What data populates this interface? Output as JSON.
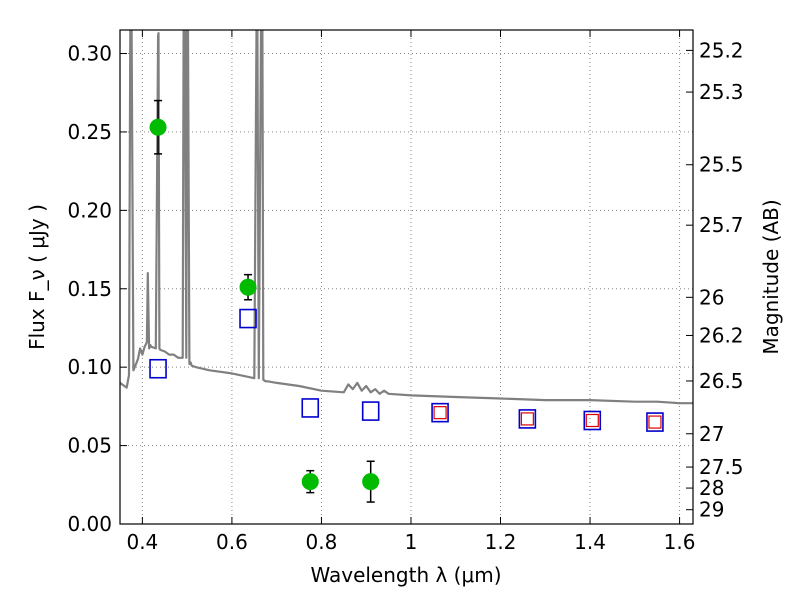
{
  "chart_data": {
    "type": "scatter",
    "xlabel": "Wavelength  λ (μm)",
    "ylabel": "Flux  F_ν  ( μJy )",
    "y2label": "Magnitude (AB)",
    "xlim": [
      0.35,
      1.63
    ],
    "ylim": [
      0.0,
      0.315
    ],
    "grid": true,
    "x_ticks": [
      0.4,
      0.6,
      0.8,
      1.0,
      1.2,
      1.4,
      1.6
    ],
    "x_tick_labels": [
      "0.4",
      "0.6",
      "0.8",
      "1",
      "1.2",
      "1.4",
      "1.6"
    ],
    "y_ticks": [
      0.0,
      0.05,
      0.1,
      0.15,
      0.2,
      0.25,
      0.3
    ],
    "y_tick_labels": [
      "0.00",
      "0.05",
      "0.10",
      "0.15",
      "0.20",
      "0.25",
      "0.30"
    ],
    "y2_tick_labels": [
      "25.2",
      "25.3",
      "25.5",
      "25.7",
      "26",
      "26.2",
      "26.5",
      "27",
      "27.5",
      "28",
      "29"
    ],
    "colors": {
      "observed": "#00bb00",
      "model_blue": "#0000cc",
      "model_red": "#dd0000",
      "template": "#808080",
      "errorbar": "#000000"
    },
    "series": [
      {
        "marker": "circle",
        "x": [
          0.435,
          0.636,
          0.775,
          0.91
        ],
        "y": [
          0.253,
          0.151,
          0.027,
          0.027
        ],
        "yerr": [
          0.017,
          0.008,
          0.007,
          0.013
        ]
      },
      {
        "marker": "square",
        "x": [
          0.435,
          0.636,
          0.775,
          0.91,
          1.065,
          1.26,
          1.405,
          1.545
        ],
        "y": [
          0.099,
          0.131,
          0.074,
          0.072,
          0.071,
          0.067,
          0.066,
          0.065
        ]
      },
      {
        "marker": "small-square",
        "x": [
          1.065,
          1.26,
          1.405,
          1.545
        ],
        "y": [
          0.071,
          0.067,
          0.066,
          0.065
        ]
      },
      {
        "marker": "line",
        "x": [
          0.35,
          0.365,
          0.37,
          0.373,
          0.376,
          0.38,
          0.39,
          0.395,
          0.4,
          0.405,
          0.41,
          0.412,
          0.415,
          0.418,
          0.42,
          0.43,
          0.435,
          0.436,
          0.438,
          0.44,
          0.45,
          0.46,
          0.47,
          0.48,
          0.49,
          0.492,
          0.495,
          0.498,
          0.5,
          0.502,
          0.505,
          0.508,
          0.51,
          0.52,
          0.55,
          0.6,
          0.65,
          0.655,
          0.657,
          0.66,
          0.665,
          0.668,
          0.67,
          0.675,
          0.68,
          0.7,
          0.75,
          0.8,
          0.85,
          0.86,
          0.87,
          0.88,
          0.89,
          0.9,
          0.91,
          0.92,
          0.93,
          0.94,
          0.95,
          1.0,
          1.1,
          1.2,
          1.3,
          1.4,
          1.5,
          1.55,
          1.6,
          1.63
        ],
        "y": [
          0.09,
          0.087,
          0.095,
          0.315,
          0.315,
          0.098,
          0.105,
          0.112,
          0.108,
          0.113,
          0.116,
          0.16,
          0.112,
          0.114,
          0.113,
          0.112,
          0.311,
          0.313,
          0.112,
          0.111,
          0.11,
          0.108,
          0.108,
          0.106,
          0.106,
          0.315,
          0.315,
          0.106,
          0.315,
          0.315,
          0.102,
          0.103,
          0.101,
          0.1,
          0.098,
          0.096,
          0.093,
          0.315,
          0.315,
          0.093,
          0.315,
          0.315,
          0.092,
          0.091,
          0.091,
          0.09,
          0.088,
          0.085,
          0.084,
          0.089,
          0.086,
          0.09,
          0.085,
          0.088,
          0.084,
          0.086,
          0.083,
          0.085,
          0.083,
          0.082,
          0.081,
          0.08,
          0.079,
          0.079,
          0.078,
          0.078,
          0.077,
          0.077
        ]
      }
    ]
  }
}
